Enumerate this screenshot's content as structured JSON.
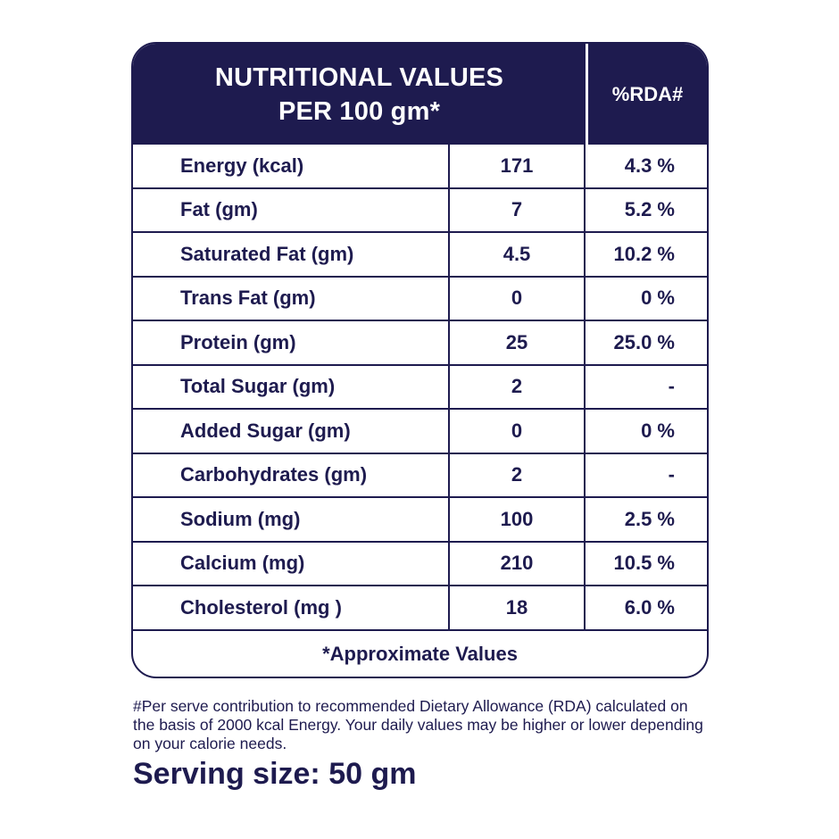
{
  "header": {
    "title_line1": "NUTRITIONAL VALUES",
    "title_line2": "PER 100 gm*",
    "rda_label": "%RDA#"
  },
  "rows": [
    {
      "name": "Energy (kcal)",
      "value": "171",
      "rda": "4.3 %"
    },
    {
      "name": "Fat (gm)",
      "value": "7",
      "rda": "5.2 %"
    },
    {
      "name": "Saturated Fat (gm)",
      "value": "4.5",
      "rda": "10.2 %"
    },
    {
      "name": "Trans Fat (gm)",
      "value": "0",
      "rda": "0 %"
    },
    {
      "name": "Protein (gm)",
      "value": "25",
      "rda": "25.0 %"
    },
    {
      "name": "Total Sugar (gm)",
      "value": "2",
      "rda": "-"
    },
    {
      "name": "Added Sugar (gm)",
      "value": "0",
      "rda": "0 %"
    },
    {
      "name": "Carbohydrates (gm)",
      "value": "2",
      "rda": "-"
    },
    {
      "name": "Sodium (mg)",
      "value": "100",
      "rda": "2.5 %"
    },
    {
      "name": "Calcium (mg)",
      "value": "210",
      "rda": "10.5 %"
    },
    {
      "name": "Cholesterol (mg )",
      "value": "18",
      "rda": "6.0 %"
    }
  ],
  "footer": {
    "approx_note": "*Approximate Values"
  },
  "disclaimer": "#Per serve contribution to recommended Dietary Allowance (RDA) calculated on the basis of 2000 kcal Energy. Your daily values may be higher or lower depending on your calorie needs.",
  "serving_size": "Serving size: 50 gm",
  "colors": {
    "primary": "#1e1b4f",
    "background": "#ffffff"
  }
}
